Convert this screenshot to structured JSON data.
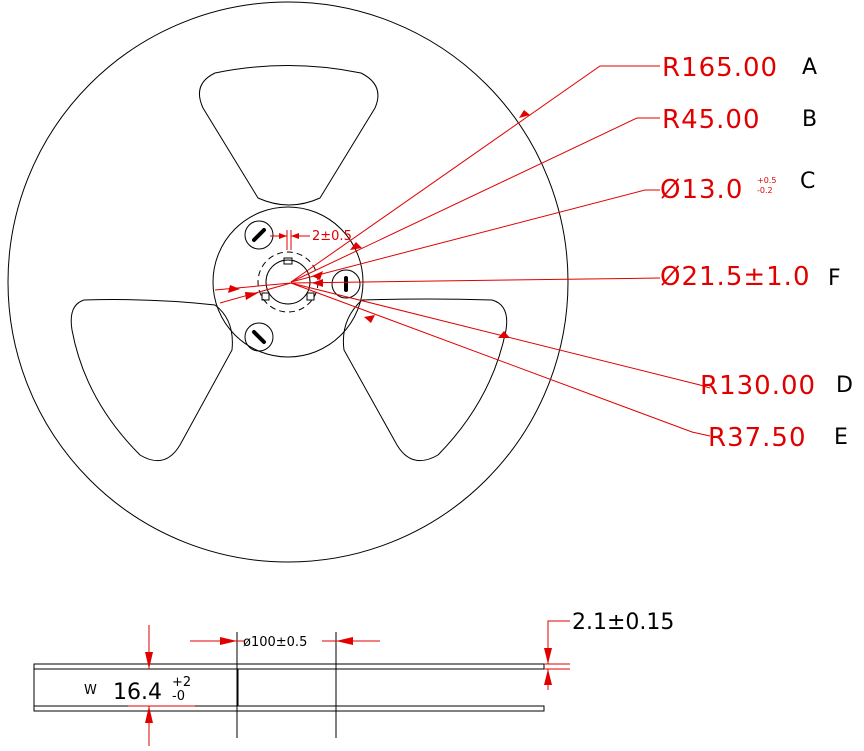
{
  "dimensions": {
    "A": {
      "value": "R165.00",
      "letter": "A"
    },
    "B": {
      "value": "R45.00",
      "letter": "B"
    },
    "C": {
      "value": "Ø13.0",
      "tol_plus": "+0.5",
      "tol_minus": "-0.2",
      "letter": "C"
    },
    "F": {
      "value": "Ø21.5±1.0",
      "letter": "F"
    },
    "D": {
      "value": "R130.00",
      "letter": "D"
    },
    "E": {
      "value": "R37.50",
      "letter": "E"
    },
    "slot": {
      "value": "2±0.5"
    }
  },
  "side_view": {
    "hub_diameter": "ø100±0.5",
    "thickness": "2.1±0.15",
    "width_label": "W",
    "width_value": "16.4",
    "width_tol_plus": "+2",
    "width_tol_minus": "-0"
  },
  "colors": {
    "dimension": "#e10000",
    "outline": "#000000"
  }
}
